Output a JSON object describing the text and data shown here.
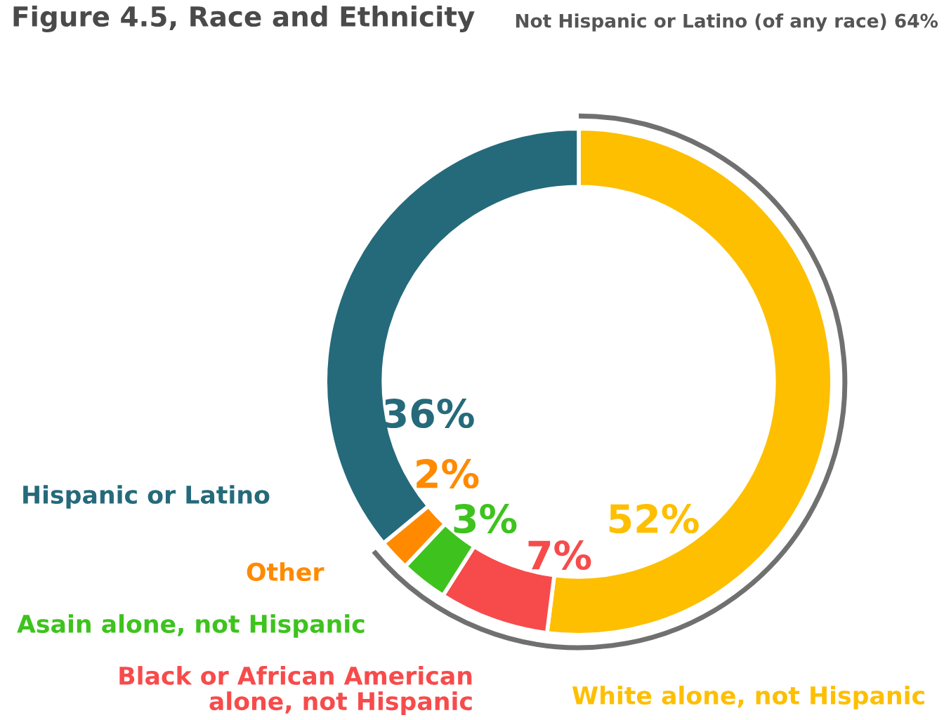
{
  "chart_data": {
    "type": "donut",
    "title": "Figure 4.5, Race and Ethnicity",
    "categories": [
      "White alone, not Hispanic",
      "Black or African American\nalone, not Hispanic",
      "Asain alone, not Hispanic",
      "Other",
      "Hispanic or Latino"
    ],
    "values": [
      52,
      7,
      3,
      2,
      36
    ],
    "colors": [
      "#fdbf00",
      "#f74b4b",
      "#3ec31e",
      "#ff8a00",
      "#256a7b"
    ],
    "value_labels": [
      "52%",
      "7%",
      "3%",
      "2%",
      "36%"
    ],
    "annotations": [
      "Not Hispanic or Latino (of any race) 64%"
    ]
  }
}
